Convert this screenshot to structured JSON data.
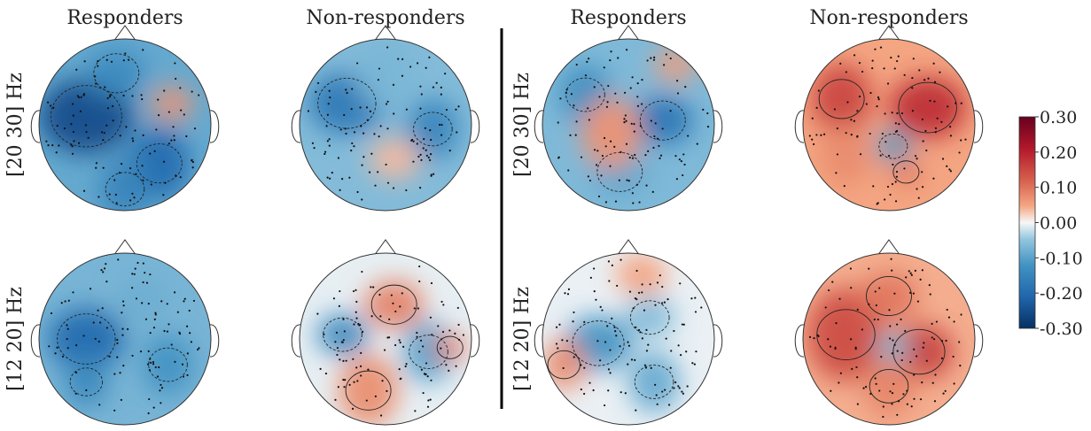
{
  "chart_data": {
    "type": "heatmap",
    "plot_kind": "topomap",
    "column_titles": [
      "Responders",
      "Non-responders",
      "Responders",
      "Non-responders"
    ],
    "row_labels": [
      "[20 30] Hz",
      "[12 20] Hz"
    ],
    "colormap": "RdBu_r",
    "colorbar": {
      "range": [
        -0.3,
        0.3
      ],
      "ticks": [
        "0.30",
        "0.20",
        "0.10",
        "0.00",
        "-0.10",
        "-0.20",
        "-0.30"
      ]
    },
    "panel_group_divider": true,
    "panels": [
      {
        "row": 0,
        "col": 0,
        "overall_sign": "negative",
        "peak_value": -0.25
      },
      {
        "row": 0,
        "col": 1,
        "overall_sign": "negative",
        "peak_value": -0.17
      },
      {
        "row": 0,
        "col": 2,
        "overall_sign": "negative",
        "peak_value": -0.18
      },
      {
        "row": 0,
        "col": 3,
        "overall_sign": "positive",
        "peak_value": 0.18
      },
      {
        "row": 1,
        "col": 0,
        "overall_sign": "negative",
        "peak_value": -0.2
      },
      {
        "row": 1,
        "col": 1,
        "overall_sign": "mixed",
        "peak_value": -0.14
      },
      {
        "row": 1,
        "col": 2,
        "overall_sign": "mixed",
        "peak_value": -0.12
      },
      {
        "row": 1,
        "col": 3,
        "overall_sign": "positive",
        "peak_value": 0.16
      }
    ]
  }
}
